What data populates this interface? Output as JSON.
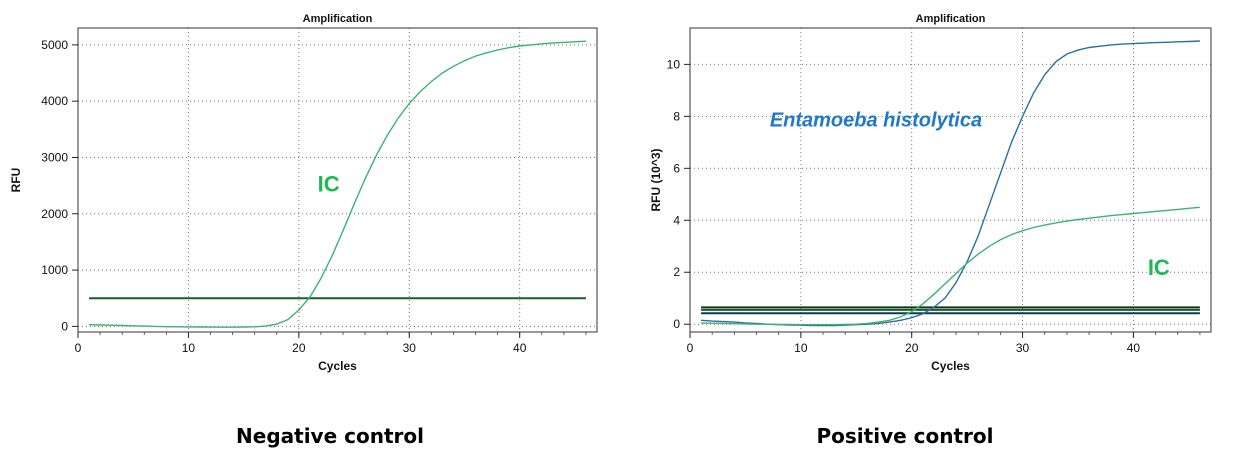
{
  "charts": [
    {
      "type": "line",
      "title": "Amplification",
      "xlabel": "Cycles",
      "ylabel": "RFU",
      "xlim": [
        0,
        47
      ],
      "ylim": [
        -100,
        5300
      ],
      "xticks": [
        0,
        10,
        20,
        30,
        40
      ],
      "yticks": [
        0,
        1000,
        2000,
        3000,
        4000,
        5000
      ],
      "grid": true,
      "series": [
        {
          "name": "IC",
          "color": "#3cb371",
          "x": [
            1,
            2,
            3,
            4,
            5,
            6,
            7,
            8,
            9,
            10,
            11,
            12,
            13,
            14,
            15,
            16,
            17,
            18,
            19,
            20,
            21,
            22,
            23,
            24,
            25,
            26,
            27,
            28,
            29,
            30,
            31,
            32,
            33,
            34,
            35,
            36,
            37,
            38,
            39,
            40,
            41,
            42,
            43,
            44,
            45,
            46
          ],
          "y": [
            30,
            25,
            20,
            15,
            10,
            5,
            0,
            -5,
            -8,
            -10,
            -12,
            -13,
            -14,
            -14,
            -12,
            -8,
            5,
            40,
            120,
            290,
            520,
            850,
            1250,
            1700,
            2170,
            2620,
            3030,
            3390,
            3700,
            3960,
            4170,
            4350,
            4500,
            4620,
            4720,
            4800,
            4860,
            4910,
            4950,
            4980,
            5000,
            5020,
            5035,
            5045,
            5055,
            5065
          ]
        }
      ],
      "annotations": [
        {
          "text": "IC",
          "x": 21.7,
          "y": 2400,
          "color": "#1db954"
        }
      ],
      "thresholds": [
        {
          "value": 500,
          "color": "#1d5c2a"
        }
      ],
      "caption": "Negative control"
    },
    {
      "type": "line",
      "title": "Amplification",
      "xlabel": "Cycles",
      "ylabel": "RFU (10^3)",
      "xlim": [
        0,
        47
      ],
      "ylim": [
        -0.3,
        11.4
      ],
      "xticks": [
        0,
        10,
        20,
        30,
        40
      ],
      "yticks": [
        0,
        2,
        4,
        6,
        8,
        10
      ],
      "grid": true,
      "series": [
        {
          "name": "Entamoeba histolytica",
          "color": "#2e6f9e",
          "x": [
            1,
            2,
            3,
            4,
            5,
            6,
            7,
            8,
            9,
            10,
            11,
            12,
            13,
            14,
            15,
            16,
            17,
            18,
            19,
            20,
            21,
            22,
            23,
            24,
            25,
            26,
            27,
            28,
            29,
            30,
            31,
            32,
            33,
            34,
            35,
            36,
            37,
            38,
            39,
            40,
            41,
            42,
            43,
            44,
            45,
            46
          ],
          "y": [
            0.15,
            0.12,
            0.1,
            0.08,
            0.05,
            0.03,
            0.0,
            -0.02,
            -0.03,
            -0.04,
            -0.05,
            -0.05,
            -0.05,
            -0.04,
            -0.02,
            0.0,
            0.03,
            0.08,
            0.15,
            0.25,
            0.4,
            0.65,
            1.0,
            1.6,
            2.4,
            3.4,
            4.6,
            5.8,
            7.0,
            8.0,
            8.9,
            9.6,
            10.1,
            10.4,
            10.55,
            10.65,
            10.7,
            10.75,
            10.78,
            10.8,
            10.82,
            10.84,
            10.85,
            10.87,
            10.88,
            10.9
          ]
        },
        {
          "name": "IC",
          "color": "#3cb371",
          "x": [
            1,
            2,
            3,
            4,
            5,
            6,
            7,
            8,
            9,
            10,
            11,
            12,
            13,
            14,
            15,
            16,
            17,
            18,
            19,
            20,
            21,
            22,
            23,
            24,
            25,
            26,
            27,
            28,
            29,
            30,
            31,
            32,
            33,
            34,
            35,
            36,
            37,
            38,
            39,
            40,
            41,
            42,
            43,
            44,
            45,
            46
          ],
          "y": [
            0.05,
            0.04,
            0.03,
            0.02,
            0.01,
            0.0,
            0.0,
            -0.01,
            -0.01,
            -0.02,
            -0.02,
            -0.02,
            -0.02,
            -0.01,
            0.0,
            0.03,
            0.08,
            0.15,
            0.28,
            0.48,
            0.78,
            1.15,
            1.55,
            1.95,
            2.35,
            2.7,
            3.0,
            3.25,
            3.45,
            3.6,
            3.72,
            3.82,
            3.9,
            3.97,
            4.03,
            4.08,
            4.13,
            4.18,
            4.22,
            4.26,
            4.3,
            4.34,
            4.38,
            4.42,
            4.46,
            4.5
          ]
        }
      ],
      "annotations": [
        {
          "text": "Entamoeba histolytica",
          "x": 7.2,
          "y": 7.6,
          "color": "#1f78c8",
          "italic": true
        },
        {
          "text": "IC",
          "x": 41.3,
          "y": 1.9,
          "color": "#1db954"
        }
      ],
      "thresholds": [
        {
          "value": 0.65,
          "color": "#0d3b1c"
        },
        {
          "value": 0.55,
          "color": "#1d5c2a"
        },
        {
          "value": 0.42,
          "color": "#0b3a55"
        }
      ],
      "caption": "Positive control"
    }
  ]
}
